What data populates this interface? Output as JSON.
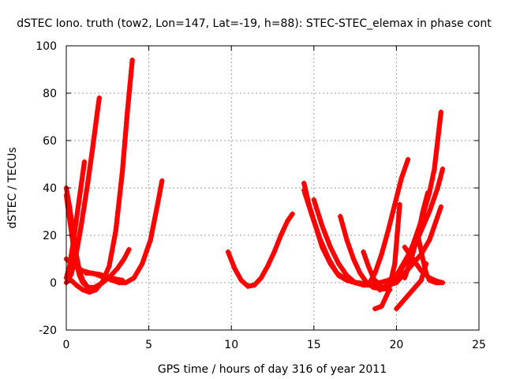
{
  "chart_data": {
    "type": "scatter",
    "title": "dSTEC Iono. truth (tow2, Lon=147, Lat=-19, h=88): STEC-STEC_elemax in phase cont",
    "xlabel": "GPS time / hours of day 316 of year 2011",
    "ylabel": "dSTEC  / TECUs",
    "xlim": [
      0,
      25
    ],
    "ylim": [
      -20,
      100
    ],
    "xticks": [
      "0",
      "5",
      "10",
      "15",
      "20",
      "25"
    ],
    "yticks": [
      "-20",
      "0",
      "20",
      "40",
      "60",
      "80",
      "100"
    ],
    "grid": true,
    "marker": "plus",
    "color": "#ff0000",
    "series": [
      {
        "x": [
          0.0,
          0.3,
          0.6,
          0.9,
          1.1,
          1.3,
          1.6,
          1.9,
          2.0
        ],
        "y": [
          0.0,
          3.5,
          12.0,
          24.0,
          33.0,
          42.0,
          57.0,
          73.0,
          78.0
        ]
      },
      {
        "x": [
          0.0,
          0.2,
          0.4,
          0.6,
          0.8,
          1.0,
          1.1
        ],
        "y": [
          2.0,
          7.0,
          16.0,
          26.0,
          36.0,
          46.0,
          51.0
        ]
      },
      {
        "x": [
          0.0,
          0.2,
          0.4,
          0.6,
          0.8,
          1.0,
          1.2,
          1.5
        ],
        "y": [
          40.0,
          32.0,
          22.0,
          12.0,
          5.0,
          1.0,
          -1.0,
          -3.0
        ]
      },
      {
        "x": [
          0.0,
          0.2,
          0.4,
          0.6,
          0.8,
          1.0,
          1.3,
          1.7,
          2.2,
          2.7,
          3.1,
          3.5,
          3.8
        ],
        "y": [
          37.0,
          27.0,
          17.0,
          9.0,
          3.0,
          0.0,
          -2.0,
          -2.0,
          0.0,
          3.0,
          6.0,
          10.0,
          14.0
        ]
      },
      {
        "x": [
          0.0,
          0.5,
          1.0,
          1.5,
          2.0,
          2.5,
          3.0,
          3.4
        ],
        "y": [
          10.0,
          7.0,
          5.0,
          4.0,
          3.5,
          2.5,
          1.5,
          1.0
        ]
      },
      {
        "x": [
          0.3,
          0.6,
          1.0,
          1.4,
          1.8,
          2.2,
          2.6,
          3.0,
          3.4,
          3.7,
          4.0
        ],
        "y": [
          1.0,
          -1.0,
          -3.0,
          -4.0,
          -3.0,
          0.5,
          7.0,
          22.0,
          47.0,
          72.0,
          94.0
        ]
      },
      {
        "x": [
          1.2,
          1.6,
          2.0,
          2.4,
          2.8,
          3.2,
          3.6,
          4.1,
          4.6,
          5.1,
          5.5,
          5.8
        ],
        "y": [
          4.0,
          4.0,
          3.0,
          2.0,
          1.0,
          0.0,
          0.0,
          2.0,
          8.0,
          18.0,
          32.0,
          43.0
        ]
      },
      {
        "x": [
          9.8,
          10.2,
          10.6,
          11.0,
          11.4,
          11.8,
          12.2,
          12.6,
          13.0,
          13.4,
          13.7
        ],
        "y": [
          13.0,
          6.0,
          1.0,
          -1.5,
          -1.0,
          2.0,
          7.0,
          13.0,
          20.0,
          26.0,
          29.0
        ]
      },
      {
        "x": [
          14.4,
          14.7,
          15.1,
          15.5,
          16.0,
          16.5,
          17.0,
          17.5,
          18.0,
          18.5,
          18.8
        ],
        "y": [
          42.0,
          33.0,
          24.0,
          15.0,
          8.0,
          3.0,
          1.0,
          0.0,
          -0.5,
          0.0,
          0.5
        ]
      },
      {
        "x": [
          14.4,
          14.9,
          15.4,
          15.9,
          16.4,
          17.0,
          17.6,
          18.2,
          18.8,
          19.3,
          19.6
        ],
        "y": [
          39.0,
          28.0,
          18.0,
          10.0,
          4.0,
          1.0,
          0.0,
          -0.5,
          -1.0,
          -2.5,
          -3.0
        ]
      },
      {
        "x": [
          15.0,
          15.5,
          16.0,
          16.5,
          17.0,
          17.5,
          18.0,
          18.5,
          19.0,
          19.5,
          19.8
        ],
        "y": [
          35.0,
          24.0,
          15.0,
          8.0,
          3.0,
          0.0,
          -1.0,
          -1.0,
          0.0,
          1.0,
          2.0
        ]
      },
      {
        "x": [
          16.6,
          17.0,
          17.4,
          17.8,
          18.2,
          18.6,
          19.0,
          19.5,
          20.0,
          20.5,
          21.0,
          21.5,
          22.0,
          22.3,
          22.7
        ],
        "y": [
          28.0,
          18.0,
          10.0,
          4.0,
          0.0,
          -2.0,
          -2.5,
          -1.0,
          2.0,
          8.0,
          16.0,
          26.0,
          38.0,
          48.0,
          72.0
        ]
      },
      {
        "x": [
          18.0,
          18.3,
          18.6,
          19.0,
          19.5,
          20.0,
          20.5,
          20.9
        ],
        "y": [
          13.0,
          7.0,
          2.0,
          -3.0,
          -2.0,
          3.0,
          9.0,
          14.0
        ]
      },
      {
        "x": [
          18.3,
          18.7,
          19.1,
          19.5,
          19.9,
          20.3,
          20.7
        ],
        "y": [
          -1.0,
          4.0,
          12.0,
          22.0,
          33.0,
          44.0,
          52.0
        ]
      },
      {
        "x": [
          18.7,
          19.1,
          19.5,
          19.9,
          20.2
        ],
        "y": [
          -11.0,
          -10.0,
          -4.0,
          8.0,
          33.0
        ]
      },
      {
        "x": [
          19.0,
          19.5,
          20.0,
          20.5,
          21.0,
          21.5,
          22.0,
          22.5,
          22.8
        ],
        "y": [
          -3.0,
          -2.0,
          2.0,
          8.0,
          14.0,
          22.0,
          30.0,
          40.0,
          48.0
        ]
      },
      {
        "x": [
          19.5,
          20.0,
          20.5,
          21.0,
          21.5,
          22.0,
          22.4,
          22.7
        ],
        "y": [
          -1.0,
          0.0,
          4.0,
          8.0,
          12.0,
          18.0,
          26.0,
          32.0
        ]
      },
      {
        "x": [
          20.0,
          20.5,
          21.0,
          21.5,
          21.8
        ],
        "y": [
          -11.0,
          -7.0,
          -3.0,
          1.0,
          8.0
        ]
      },
      {
        "x": [
          20.5,
          21.0,
          21.5,
          22.0,
          22.5,
          22.8
        ],
        "y": [
          15.0,
          10.0,
          5.0,
          2.0,
          0.5,
          0.0
        ]
      },
      {
        "x": [
          21.3,
          21.6,
          21.8,
          22.0,
          22.4,
          22.7
        ],
        "y": [
          20.0,
          10.0,
          4.0,
          1.0,
          0.0,
          0.0
        ]
      },
      {
        "x": [
          20.5,
          20.9,
          21.3,
          21.6,
          21.9
        ],
        "y": [
          2.0,
          10.0,
          20.0,
          30.0,
          38.0
        ]
      }
    ]
  }
}
